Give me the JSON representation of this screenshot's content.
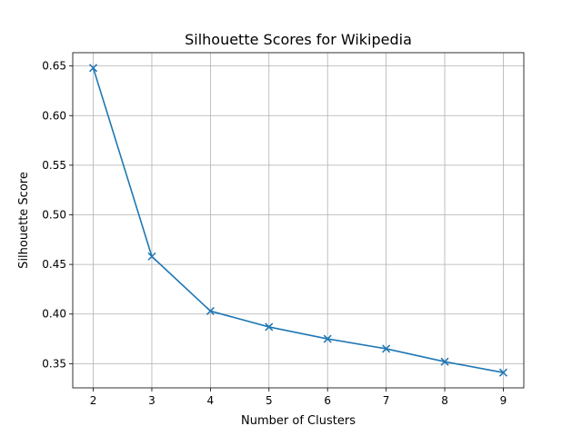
{
  "chart_data": {
    "type": "line",
    "title": "Silhouette Scores for Wikipedia",
    "xlabel": "Number of Clusters",
    "ylabel": "Silhouette Score",
    "x": [
      2,
      3,
      4,
      5,
      6,
      7,
      8,
      9
    ],
    "series": [
      {
        "values": [
          0.648,
          0.458,
          0.403,
          0.387,
          0.375,
          0.365,
          0.352,
          0.341
        ],
        "color": "#1f77b4",
        "marker": "x"
      }
    ],
    "xticks": [
      2,
      3,
      4,
      5,
      6,
      7,
      8,
      9
    ],
    "yticks": [
      0.35,
      0.4,
      0.45,
      0.5,
      0.55,
      0.6,
      0.65
    ],
    "ytick_labels": [
      "0.35",
      "0.40",
      "0.45",
      "0.50",
      "0.55",
      "0.60",
      "0.65"
    ],
    "xlim": [
      1.65,
      9.35
    ],
    "ylim": [
      0.3256,
      0.6634
    ],
    "grid": true,
    "legend": "none"
  }
}
